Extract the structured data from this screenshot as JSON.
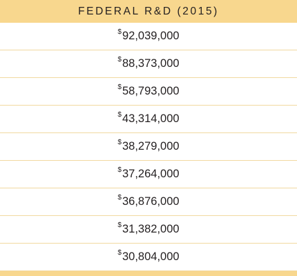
{
  "table": {
    "header": "FEDERAL R&D (2015)",
    "currency_symbol": "$",
    "rows": [
      {
        "value": "92,039,000"
      },
      {
        "value": "88,373,000"
      },
      {
        "value": "58,793,000"
      },
      {
        "value": "43,314,000"
      },
      {
        "value": "38,279,000"
      },
      {
        "value": "37,264,000"
      },
      {
        "value": "36,876,000"
      },
      {
        "value": "31,382,000"
      },
      {
        "value": "30,804,000"
      }
    ]
  },
  "colors": {
    "header_bg": "#f8d78e",
    "row_divider": "#f1d9a0",
    "text": "#231f20"
  }
}
